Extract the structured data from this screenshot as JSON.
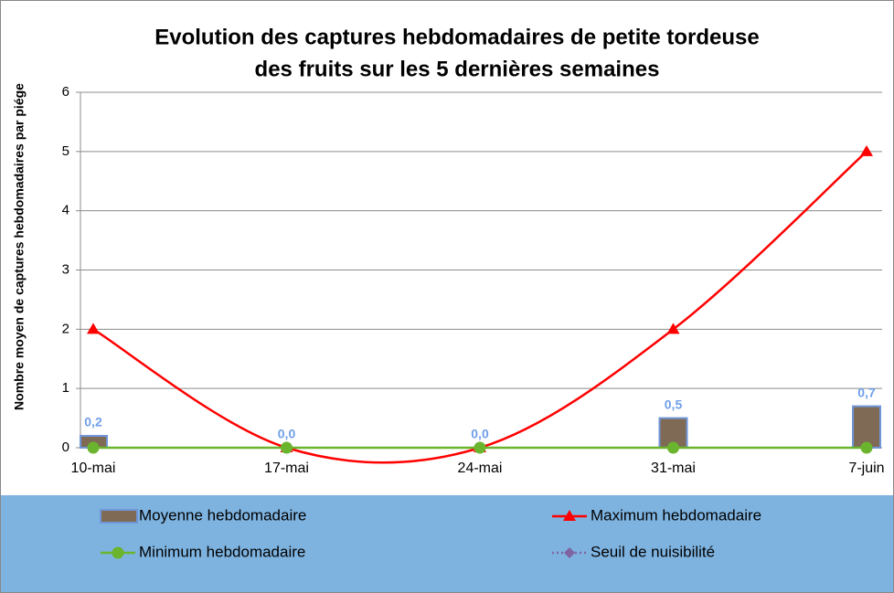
{
  "chart_data": {
    "type": "bar_line",
    "title": [
      "Evolution des captures hebdomadaires de petite tordeuse",
      "des fruits sur les 5 dernières semaines"
    ],
    "y_label": "Nombre moyen de captures hebdomadaires par piége",
    "categories": [
      "10-mai",
      "17-mai",
      "24-mai",
      "31-mai",
      "7-juin"
    ],
    "series": [
      {
        "name": "Moyenne hebdomadaire",
        "kind": "bar",
        "color": "#7f6b55",
        "edge": "#6f96d8",
        "values": [
          0.2,
          0,
          0,
          0.5,
          0.7
        ],
        "value_labels": [
          "0,2",
          "0,0",
          "0,0",
          "0,5",
          "0,7"
        ]
      },
      {
        "name": "Maximum hebdomadaire",
        "kind": "line",
        "marker": "triangle",
        "smooth": true,
        "color": "#ff0000",
        "values": [
          2,
          0,
          0,
          2,
          5
        ]
      },
      {
        "name": "Minimum hebdomadaire",
        "kind": "line",
        "marker": "circle",
        "color": "#6ab42e",
        "values": [
          0,
          0,
          0,
          0,
          0
        ]
      },
      {
        "name": "Seuil de nuisibilité",
        "kind": "line",
        "marker": "diamond",
        "dotted": true,
        "color": "#8064a2",
        "values": [
          null,
          null,
          null,
          null,
          null
        ]
      }
    ],
    "ylim": [
      0,
      6
    ],
    "yticks": [
      0,
      1,
      2,
      3,
      4,
      5,
      6
    ],
    "grid": true,
    "legend": "bottom"
  }
}
